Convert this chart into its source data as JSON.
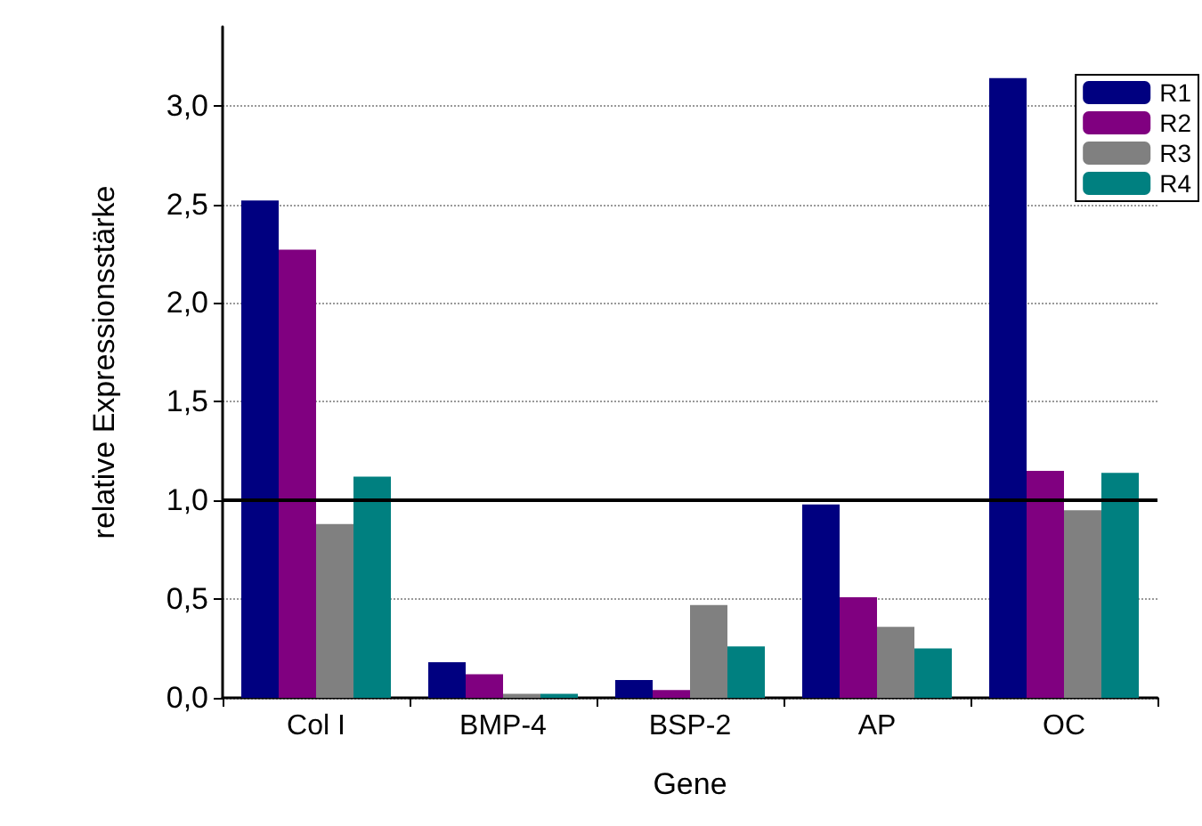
{
  "chart_data": {
    "type": "bar",
    "xlabel": "Gene",
    "ylabel": "relative Expressionsstärke",
    "categories": [
      "Col I",
      "BMP-4",
      "BSP-2",
      "AP",
      "OC"
    ],
    "series": [
      {
        "name": "R1",
        "color": "#000080",
        "values": [
          2.52,
          0.18,
          0.09,
          0.98,
          3.14
        ]
      },
      {
        "name": "R2",
        "color": "#800080",
        "values": [
          2.27,
          0.12,
          0.04,
          0.51,
          1.15
        ]
      },
      {
        "name": "R3",
        "color": "#808080",
        "values": [
          0.88,
          0.02,
          0.47,
          0.36,
          0.95
        ]
      },
      {
        "name": "R4",
        "color": "#008080",
        "values": [
          1.12,
          0.02,
          0.26,
          0.25,
          1.14
        ]
      }
    ],
    "ylim": [
      0,
      3.4
    ],
    "yticks": [
      {
        "value": 0,
        "label": "0,0"
      },
      {
        "value": 0.5,
        "label": "0,5"
      },
      {
        "value": 1,
        "label": "1,0"
      },
      {
        "value": 1.5,
        "label": "1,5"
      },
      {
        "value": 2,
        "label": "2,0"
      },
      {
        "value": 2.5,
        "label": "2,5"
      },
      {
        "value": 3,
        "label": "3,0"
      }
    ],
    "grid": "y",
    "legend": "top right",
    "ref_lines": [
      {
        "axis": "y",
        "value": 1,
        "color": "#000000",
        "line_style": "solid"
      }
    ]
  }
}
